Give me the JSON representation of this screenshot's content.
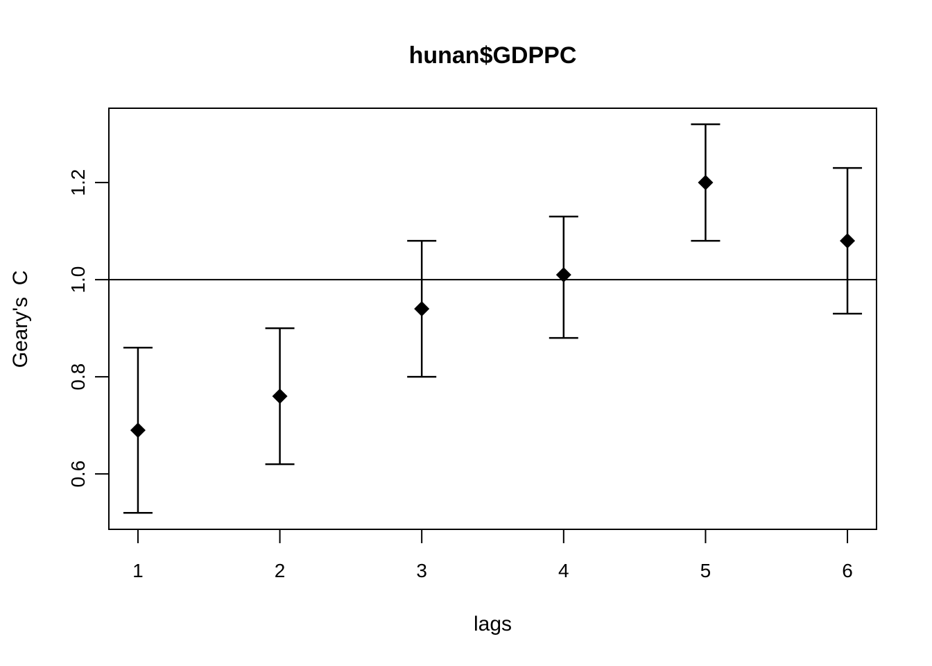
{
  "figure": {
    "background_color": "#ffffff",
    "foreground_color": "#000000"
  },
  "chart_data": {
    "type": "scatter",
    "title": "hunan$GDPPC",
    "xlabel": "lags",
    "ylabel": "Geary's  C",
    "marker": "filled-diamond",
    "grid": false,
    "legend": null,
    "x": [
      1,
      2,
      3,
      4,
      5,
      6
    ],
    "y": [
      0.69,
      0.76,
      0.94,
      1.01,
      1.2,
      1.08
    ],
    "ci_low": [
      0.52,
      0.62,
      0.8,
      0.88,
      1.08,
      0.93
    ],
    "ci_high": [
      0.86,
      0.9,
      1.08,
      1.13,
      1.32,
      1.23
    ],
    "reference_line_y": 1.0,
    "xticks": [
      1,
      2,
      3,
      4,
      5,
      6
    ],
    "yticks": [
      0.6,
      0.8,
      1.0,
      1.2
    ],
    "xlim": [
      0.795,
      6.205
    ],
    "ylim": [
      0.486,
      1.353
    ]
  }
}
